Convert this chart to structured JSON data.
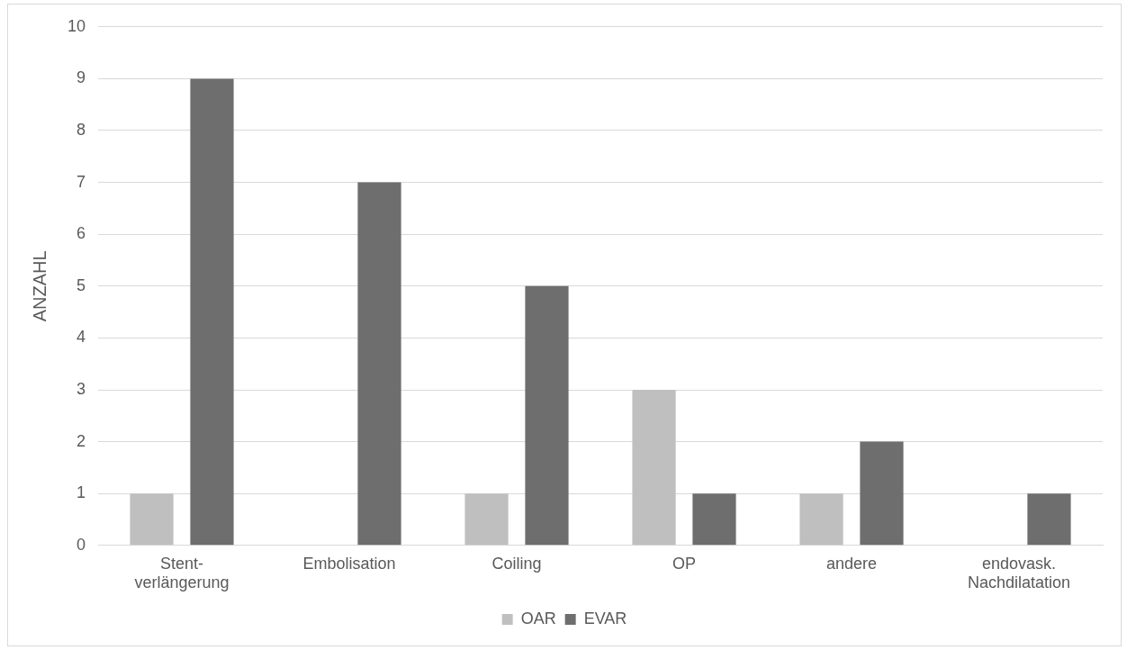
{
  "chart_data": {
    "type": "bar",
    "ylabel": "ANZAHL",
    "categories": [
      "Stent-verlängerung",
      "Embolisation",
      "Coiling",
      "OP",
      "andere",
      "endovask. Nachdilatation"
    ],
    "series": [
      {
        "name": "OAR",
        "color": "#bfbfbf",
        "values": [
          1,
          0,
          1,
          3,
          1,
          0
        ]
      },
      {
        "name": "EVAR",
        "color": "#6e6e6e",
        "values": [
          9,
          7,
          5,
          1,
          2,
          1
        ]
      }
    ],
    "ylim": [
      0,
      10
    ],
    "yticks": [
      0,
      1,
      2,
      3,
      4,
      5,
      6,
      7,
      8,
      9,
      10
    ],
    "grid": "y",
    "legend": "bottom"
  }
}
